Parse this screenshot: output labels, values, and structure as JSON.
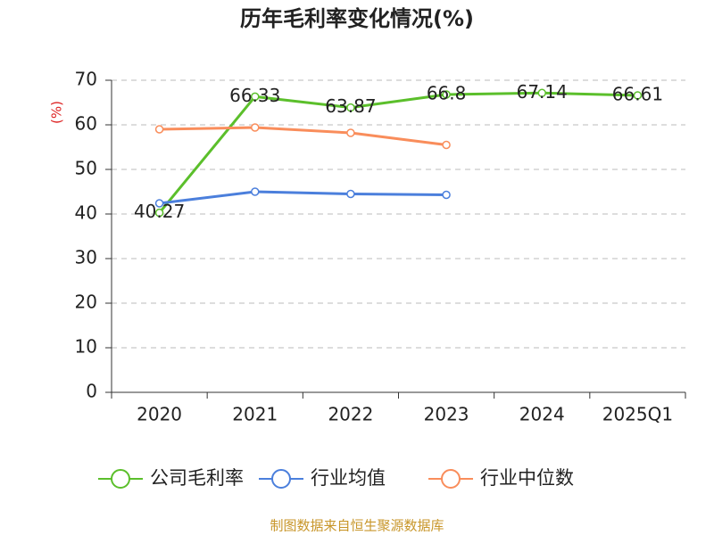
{
  "chart_data": {
    "type": "line",
    "title": "历年毛利率变化情况(%)",
    "y_label": "(%)",
    "categories": [
      "2020",
      "2021",
      "2022",
      "2023",
      "2024",
      "2025Q1"
    ],
    "series": [
      {
        "name": "公司毛利率",
        "color": "#5bbf2b",
        "values": [
          40.27,
          66.33,
          63.87,
          66.8,
          67.14,
          66.61
        ],
        "show_labels": true
      },
      {
        "name": "行业均值",
        "color": "#4b7fdc",
        "values": [
          42.4,
          45.0,
          44.5,
          44.3,
          null,
          null
        ],
        "show_labels": false
      },
      {
        "name": "行业中位数",
        "color": "#f98d5b",
        "values": [
          59.0,
          59.4,
          58.2,
          55.5,
          null,
          null
        ],
        "show_labels": false
      }
    ],
    "ylim": [
      0,
      70
    ],
    "yticks": [
      0,
      10,
      20,
      30,
      40,
      50,
      60,
      70
    ],
    "grid": true,
    "source": "制图数据来自恒生聚源数据库"
  }
}
